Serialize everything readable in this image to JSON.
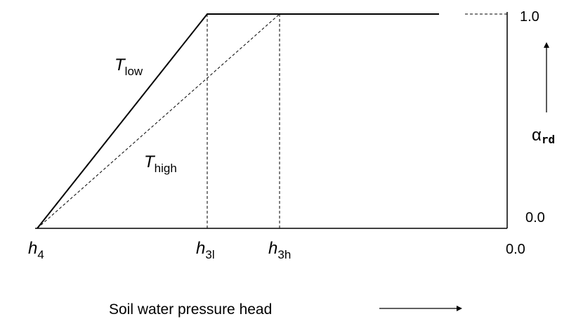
{
  "diagram": {
    "curves": [
      {
        "main": "T",
        "sub": "low",
        "style": "solid"
      },
      {
        "main": "T",
        "sub": "high",
        "style": "dashed"
      }
    ],
    "x_markers": [
      {
        "main": "h",
        "sub": "4"
      },
      {
        "main": "h",
        "sub": "3l"
      },
      {
        "main": "h",
        "sub": "3h"
      }
    ],
    "x_end_label": "0.0",
    "x_axis_label": "Soil water pressure head",
    "y_axis_symbol": "α",
    "y_axis_sub": "rd",
    "y_top_label": "1.0",
    "y_bottom_label": "0.0"
  }
}
